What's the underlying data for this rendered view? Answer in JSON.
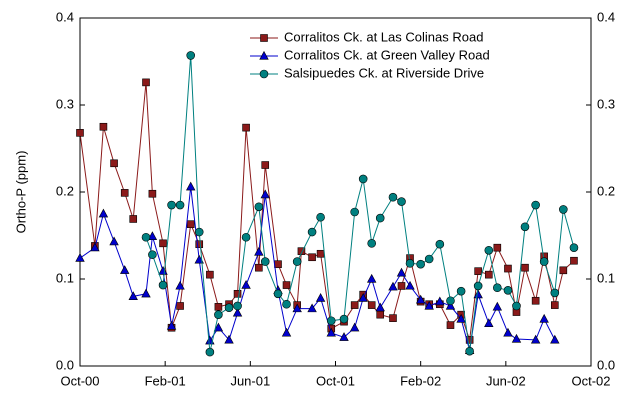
{
  "chart_data": {
    "type": "line",
    "y_label": "Ortho-P (ppm)",
    "xlim": [
      0,
      24
    ],
    "xticks": [
      {
        "value": 0,
        "label": "Oct-00"
      },
      {
        "value": 4,
        "label": "Feb-01"
      },
      {
        "value": 8,
        "label": "Jun-01"
      },
      {
        "value": 12,
        "label": "Oct-01"
      },
      {
        "value": 16,
        "label": "Feb-02"
      },
      {
        "value": 20,
        "label": "Jun-02"
      },
      {
        "value": 24,
        "label": "Oct-02"
      }
    ],
    "ylim": [
      0,
      0.4
    ],
    "yticks": [
      {
        "value": 0,
        "label": "0.0"
      },
      0.1,
      0.2,
      0.3,
      0.4
    ],
    "y2lim": [
      0,
      0.4
    ],
    "y2ticks": [
      {
        "value": 0,
        "label": "0.0"
      },
      0.1,
      0.2,
      0.3,
      0.4
    ],
    "legend": "upper right",
    "series": [
      {
        "name": "Corralitos Ck. at Las Colinas Road",
        "color": "#8b1a1a",
        "marker": "square",
        "x": [
          0,
          0.7,
          1.1,
          1.6,
          2.1,
          2.5,
          3.1,
          3.4,
          3.9,
          4.3,
          4.7,
          5.2,
          5.6,
          6.1,
          6.5,
          7.0,
          7.4,
          7.8,
          8.4,
          8.7,
          9.3,
          9.7,
          10.2,
          10.4,
          10.9,
          11.3,
          11.8,
          12.4,
          12.9,
          13.3,
          13.7,
          14.1,
          14.7,
          15.1,
          15.5,
          16.0,
          16.4,
          16.9,
          17.4,
          17.9,
          18.3,
          18.7,
          19.2,
          19.6,
          20.1,
          20.5,
          20.9,
          21.4,
          21.8,
          22.3,
          22.7,
          23.2
        ],
        "values": [
          0.268,
          0.138,
          0.275,
          0.233,
          0.199,
          0.169,
          0.326,
          0.198,
          0.141,
          0.044,
          0.069,
          0.163,
          0.14,
          0.105,
          0.068,
          0.071,
          0.083,
          0.274,
          0.113,
          0.231,
          0.117,
          0.093,
          0.07,
          0.132,
          0.125,
          0.129,
          0.043,
          0.051,
          0.07,
          0.082,
          0.07,
          0.059,
          0.055,
          0.092,
          0.124,
          0.074,
          0.071,
          0.071,
          0.047,
          0.059,
          0.03,
          0.109,
          0.105,
          0.136,
          0.112,
          0.062,
          0.113,
          0.075,
          0.126,
          0.07,
          0.11,
          0.121
        ]
      },
      {
        "name": "Corralitos Ck. at Green Valley Road",
        "color": "#0000cc",
        "marker": "triangle",
        "x": [
          0,
          0.7,
          1.1,
          1.6,
          2.1,
          2.5,
          3.1,
          3.4,
          3.9,
          4.3,
          4.7,
          5.2,
          5.6,
          6.1,
          6.5,
          7.0,
          7.4,
          7.8,
          8.4,
          8.7,
          9.3,
          9.7,
          10.2,
          10.9,
          11.3,
          11.8,
          12.4,
          12.9,
          13.3,
          13.7,
          14.1,
          14.7,
          15.1,
          15.5,
          16.0,
          16.4,
          16.9,
          17.4,
          17.9,
          18.3,
          18.7,
          19.2,
          19.6,
          20.1,
          20.5,
          21.4,
          21.8,
          22.3
        ],
        "values": [
          0.124,
          0.136,
          0.175,
          0.143,
          0.11,
          0.08,
          0.083,
          0.149,
          0.109,
          0.046,
          0.092,
          0.206,
          0.122,
          0.029,
          0.044,
          0.03,
          0.061,
          0.093,
          0.131,
          0.197,
          0.087,
          0.038,
          0.066,
          0.066,
          0.078,
          0.038,
          0.033,
          0.044,
          0.078,
          0.1,
          0.067,
          0.091,
          0.107,
          0.092,
          0.076,
          0.069,
          0.074,
          0.069,
          0.054,
          0.018,
          0.082,
          0.049,
          0.068,
          0.038,
          0.031,
          0.03,
          0.054,
          0.03
        ]
      },
      {
        "name": "Salsipuedes Ck. at Riverside Drive",
        "color": "#008080",
        "marker": "circle",
        "x": [
          3.1,
          3.4,
          3.9,
          4.3,
          4.7,
          5.2,
          5.6,
          6.1,
          6.5,
          7.0,
          7.4,
          7.8,
          8.4,
          8.7,
          9.3,
          9.7,
          10.2,
          10.9,
          11.3,
          11.8,
          12.4,
          12.9,
          13.3,
          13.7,
          14.1,
          14.7,
          15.1,
          15.5,
          16.0,
          16.4,
          16.9,
          17.4,
          17.9,
          18.3,
          18.7,
          19.2,
          19.6,
          20.1,
          20.5,
          20.9,
          21.4,
          21.8,
          22.3,
          22.7,
          23.2
        ],
        "values": [
          0.148,
          0.128,
          0.093,
          0.185,
          0.185,
          0.357,
          0.154,
          0.016,
          0.059,
          0.067,
          0.069,
          0.148,
          0.183,
          0.12,
          0.083,
          0.071,
          0.12,
          0.154,
          0.171,
          0.052,
          0.054,
          0.177,
          0.215,
          0.141,
          0.17,
          0.194,
          0.189,
          0.118,
          0.117,
          0.123,
          0.14,
          0.075,
          0.086,
          0.017,
          0.092,
          0.133,
          0.09,
          0.087,
          0.069,
          0.16,
          0.185,
          0.12,
          0.084,
          0.18,
          0.136
        ]
      }
    ]
  }
}
